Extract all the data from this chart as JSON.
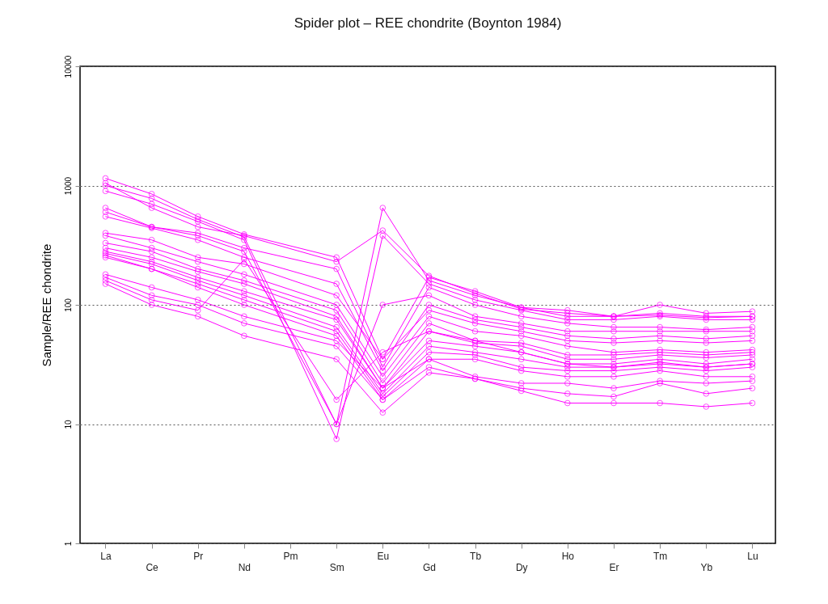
{
  "chart_data": {
    "type": "line",
    "title": "Spider plot – REE chondrite (Boynton 1984)",
    "ylabel": "Sample/REE chondrite",
    "categories": [
      "La",
      "Ce",
      "Pr",
      "Nd",
      "Pm",
      "Sm",
      "Eu",
      "Gd",
      "Tb",
      "Dy",
      "Ho",
      "Er",
      "Tm",
      "Yb",
      "Lu"
    ],
    "log": "y",
    "ylim": [
      1,
      10000
    ],
    "yticks": [
      1,
      10,
      100,
      1000,
      10000
    ],
    "grid": "y",
    "legend": false,
    "marker": "circle",
    "line_style": "solid",
    "series": [
      {
        "color": "#ff00ff",
        "values": [
          1150,
          850,
          550,
          390,
          null,
          250,
          35,
          170,
          130,
          95,
          90,
          80,
          100,
          85,
          88
        ]
      },
      {
        "color": "#ff00ff",
        "values": [
          1000,
          780,
          520,
          370,
          null,
          10,
          650,
          160,
          120,
          95,
          80,
          80,
          85,
          80,
          80
        ]
      },
      {
        "color": "#ff00ff",
        "values": [
          900,
          700,
          500,
          350,
          null,
          7.5,
          380,
          150,
          110,
          90,
          75,
          75,
          80,
          75,
          75
        ]
      },
      {
        "color": "#ff00ff",
        "values": [
          1050,
          650,
          450,
          380,
          null,
          230,
          420,
          175,
          125,
          92,
          85,
          80,
          82,
          78,
          80
        ]
      },
      {
        "color": "#ff00ff",
        "values": [
          650,
          450,
          400,
          300,
          null,
          200,
          30,
          140,
          100,
          80,
          70,
          65,
          65,
          62,
          65
        ]
      },
      {
        "color": "#ff00ff",
        "values": [
          600,
          450,
          380,
          280,
          null,
          10,
          100,
          120,
          80,
          70,
          60,
          60,
          60,
          60,
          60
        ]
      },
      {
        "color": "#ff00ff",
        "values": [
          550,
          440,
          350,
          250,
          null,
          150,
          28,
          100,
          75,
          65,
          55,
          52,
          55,
          52,
          55
        ]
      },
      {
        "color": "#ff00ff",
        "values": [
          400,
          350,
          250,
          220,
          null,
          120,
          35,
          90,
          70,
          60,
          50,
          48,
          50,
          48,
          50
        ]
      },
      {
        "color": "#ff00ff",
        "values": [
          380,
          300,
          230,
          180,
          null,
          100,
          25,
          80,
          60,
          55,
          45,
          40,
          42,
          40,
          42
        ]
      },
      {
        "color": "#ff00ff",
        "values": [
          330,
          280,
          200,
          160,
          null,
          90,
          22,
          70,
          50,
          48,
          38,
          38,
          40,
          38,
          40
        ]
      },
      {
        "color": "#ff00ff",
        "values": [
          300,
          250,
          190,
          150,
          null,
          80,
          20,
          60,
          48,
          45,
          35,
          35,
          38,
          36,
          38
        ]
      },
      {
        "color": "#ff00ff",
        "values": [
          280,
          230,
          170,
          130,
          null,
          75,
          20,
          50,
          45,
          40,
          32,
          32,
          35,
          32,
          35
        ]
      },
      {
        "color": "#ff00ff",
        "values": [
          270,
          220,
          160,
          120,
          null,
          65,
          18,
          45,
          40,
          35,
          30,
          30,
          32,
          30,
          32
        ]
      },
      {
        "color": "#ff00ff",
        "values": [
          260,
          200,
          150,
          110,
          null,
          60,
          17,
          40,
          38,
          30,
          28,
          28,
          30,
          28,
          30
        ]
      },
      {
        "color": "#ff00ff",
        "values": [
          250,
          200,
          140,
          100,
          null,
          55,
          16,
          35,
          35,
          28,
          25,
          25,
          28,
          25,
          25
        ]
      },
      {
        "color": "#ff00ff",
        "values": [
          180,
          140,
          110,
          80,
          null,
          50,
          20,
          35,
          25,
          22,
          22,
          20,
          23,
          22,
          23
        ]
      },
      {
        "color": "#ff00ff",
        "values": [
          170,
          120,
          100,
          70,
          null,
          45,
          16,
          30,
          24,
          20,
          18,
          17,
          22,
          18,
          20
        ]
      },
      {
        "color": "#ff00ff",
        "values": [
          150,
          100,
          80,
          55,
          null,
          35,
          12.5,
          27,
          24,
          19,
          15,
          15,
          15,
          14,
          15
        ]
      },
      {
        "color": "#ff00ff",
        "values": [
          160,
          110,
          90,
          240,
          null,
          16,
          40,
          60,
          50,
          40,
          32,
          30,
          33,
          30,
          32
        ]
      }
    ]
  }
}
